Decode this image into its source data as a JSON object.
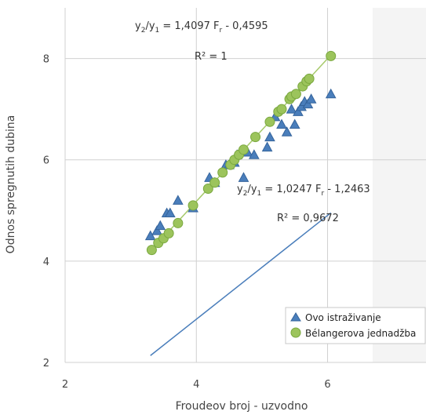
{
  "chart_data": {
    "type": "scatter",
    "xlabel": "Froudeov broj - uzvodno",
    "ylabel": "Odnos spregnutih dubina",
    "xlim": [
      2,
      7.5
    ],
    "ylim": [
      2,
      9
    ],
    "xticks": [
      "2",
      "4",
      "6"
    ],
    "yticks": [
      "2",
      "4",
      "6",
      "8"
    ],
    "grid": "vertical and horizontal",
    "legend_position": "bottom-right",
    "series": [
      {
        "name": "Ovo istraživanje",
        "marker": "triangle",
        "color": "#4a7ebb",
        "x": [
          3.3,
          3.4,
          3.45,
          3.55,
          3.6,
          3.72,
          3.95,
          4.2,
          4.28,
          4.45,
          4.5,
          4.58,
          4.62,
          4.72,
          4.78,
          4.88,
          5.08,
          5.12,
          5.2,
          5.3,
          5.38,
          5.45,
          5.5,
          5.55,
          5.6,
          5.65,
          5.7,
          5.75,
          6.05
        ],
        "y": [
          4.5,
          4.6,
          4.7,
          4.95,
          4.95,
          5.2,
          5.05,
          5.65,
          5.55,
          5.9,
          5.9,
          5.95,
          6.1,
          5.65,
          6.15,
          6.1,
          6.25,
          6.45,
          6.85,
          6.7,
          6.55,
          7.0,
          6.7,
          6.95,
          7.05,
          7.15,
          7.1,
          7.2,
          7.3
        ],
        "trendline": {
          "slope": 1.0247,
          "intercept": -1.2463,
          "color": "#4a7ebb"
        }
      },
      {
        "name": "Bélangerova jednadžba",
        "marker": "circle",
        "color": "#8fbc4f",
        "x": [
          3.32,
          3.42,
          3.5,
          3.58,
          3.72,
          3.95,
          4.18,
          4.28,
          4.4,
          4.52,
          4.58,
          4.65,
          4.72,
          4.9,
          5.12,
          5.25,
          5.3,
          5.42,
          5.45,
          5.52,
          5.62,
          5.68,
          5.72,
          6.05
        ],
        "y": [
          4.22,
          4.36,
          4.45,
          4.55,
          4.75,
          5.1,
          5.43,
          5.55,
          5.75,
          5.9,
          6.0,
          6.1,
          6.2,
          6.45,
          6.75,
          6.95,
          7.0,
          7.2,
          7.25,
          7.3,
          7.45,
          7.55,
          7.6,
          8.05
        ],
        "trendline": {
          "slope": 1.4097,
          "intercept": -0.4595,
          "color": "#a6c96a"
        }
      }
    ],
    "annotations": {
      "eq_top_lhs": "y",
      "eq_top_sub1": "2",
      "eq_top_mid": "/y",
      "eq_top_sub2": "1",
      "eq_top_rhs": " = 1,4097 F",
      "eq_top_subr": "r",
      "eq_top_tail": " - 0,4595",
      "r2_top": "R² = 1",
      "eq_bottom_lhs": "y",
      "eq_bottom_sub1": "2",
      "eq_bottom_mid": "/y",
      "eq_bottom_sub2": "1",
      "eq_bottom_rhs": " = 1,0247 F",
      "eq_bottom_subr": "r",
      "eq_bottom_tail": " - 1,2463",
      "r2_bottom": "R² = 0,9672"
    }
  }
}
